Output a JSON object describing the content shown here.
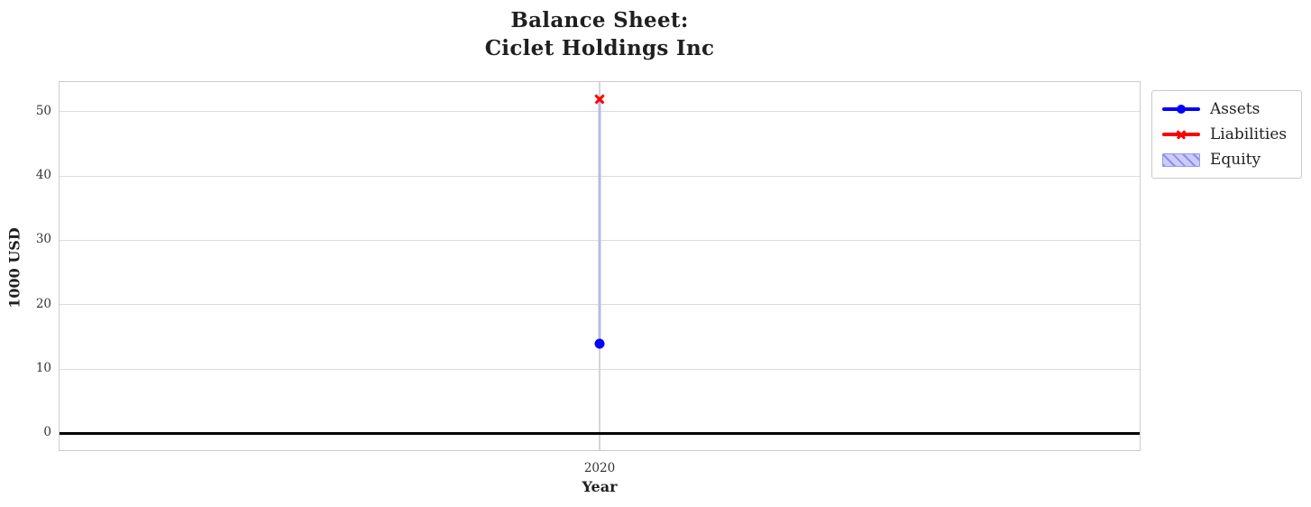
{
  "chart_data": {
    "type": "line+bar",
    "title_line1": "Balance Sheet:",
    "title_line2": "Ciclet Holdings Inc",
    "xlabel": "Year",
    "ylabel": "1000 USD",
    "x": [
      2020
    ],
    "xticks": [
      "2020"
    ],
    "yticks": [
      0,
      10,
      20,
      30,
      40,
      50
    ],
    "ylim": [
      -2.6,
      54.6
    ],
    "grid": true,
    "zero_line_y": 0,
    "legend_position": "outside-top-right",
    "series": [
      {
        "name": "Assets",
        "type": "line",
        "marker": "circle",
        "color": "#0000ff",
        "values": [
          14
        ]
      },
      {
        "name": "Liabilities",
        "type": "line",
        "marker": "x",
        "color": "#ff0000",
        "values": [
          52
        ]
      },
      {
        "name": "Equity",
        "type": "bar",
        "hatch": "////",
        "fill_color": "#ccccfa",
        "hatch_color": "#8d8df0",
        "bar_color_on_plot": "#b9b9ea",
        "values": [
          -38
        ],
        "bar_bottom": [
          52
        ],
        "bar_span": [
          14,
          52
        ]
      }
    ]
  },
  "colors": {
    "grid": "#dcdcdc",
    "frame": "#cccccc",
    "zero_line": "#000000",
    "text": "#1f1f1f",
    "tick_text": "#333333"
  }
}
